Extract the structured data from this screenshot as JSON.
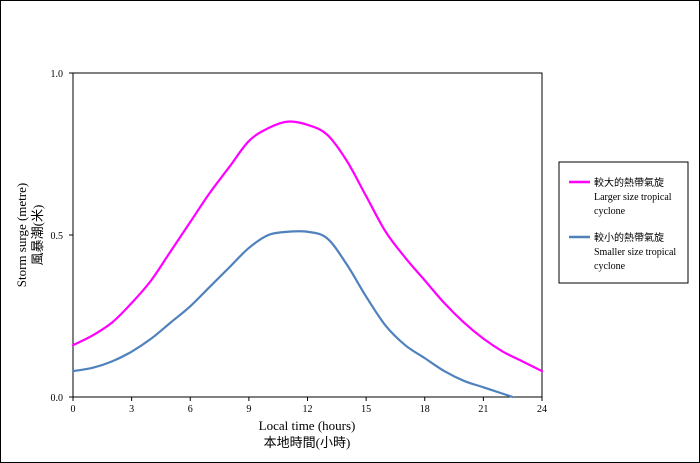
{
  "chart_data": {
    "type": "line",
    "xlabel_en": "Local time (hours)",
    "xlabel_zh": "本地時間(小時)",
    "ylabel_en": "Storm surge (metre)",
    "ylabel_zh": "風暴潮(米)",
    "xlim": [
      0,
      24
    ],
    "ylim": [
      0,
      1.0
    ],
    "x_ticks": [
      0,
      3,
      6,
      9,
      12,
      15,
      18,
      21,
      24
    ],
    "x_tick_labels": [
      "0",
      "3",
      "6",
      "9",
      "12",
      "15",
      "18",
      "21",
      "24"
    ],
    "y_ticks": [
      0,
      0.5,
      1.0
    ],
    "y_tick_labels": [
      "0.0",
      "0.5",
      "1.0"
    ],
    "grid": false,
    "legend_position": "right",
    "series": [
      {
        "name_zh": "較大的熱帶氣旋",
        "name_en_line1": "Larger size tropical",
        "name_en_line2": "cyclone",
        "color": "#ff00ff",
        "x": [
          0,
          1,
          2,
          3,
          4,
          5,
          6,
          7,
          8,
          9,
          10,
          11,
          12,
          13,
          14,
          15,
          16,
          17,
          18,
          19,
          20,
          21,
          22,
          23,
          24
        ],
        "y": [
          0.16,
          0.19,
          0.23,
          0.29,
          0.36,
          0.45,
          0.54,
          0.63,
          0.71,
          0.79,
          0.83,
          0.85,
          0.84,
          0.81,
          0.73,
          0.62,
          0.51,
          0.43,
          0.36,
          0.29,
          0.23,
          0.18,
          0.14,
          0.11,
          0.08
        ]
      },
      {
        "name_zh": "較小的熱帶氣旋",
        "name_en_line1": "Smaller size tropical",
        "name_en_line2": "cyclone",
        "color": "#4f81bd",
        "x": [
          0,
          1,
          2,
          3,
          4,
          5,
          6,
          7,
          8,
          9,
          10,
          11,
          12,
          13,
          14,
          15,
          16,
          17,
          18,
          19,
          20,
          21,
          22,
          22.5
        ],
        "y": [
          0.08,
          0.09,
          0.11,
          0.14,
          0.18,
          0.23,
          0.28,
          0.34,
          0.4,
          0.46,
          0.5,
          0.51,
          0.51,
          0.49,
          0.41,
          0.31,
          0.22,
          0.16,
          0.12,
          0.08,
          0.05,
          0.03,
          0.01,
          0.0
        ]
      }
    ]
  }
}
